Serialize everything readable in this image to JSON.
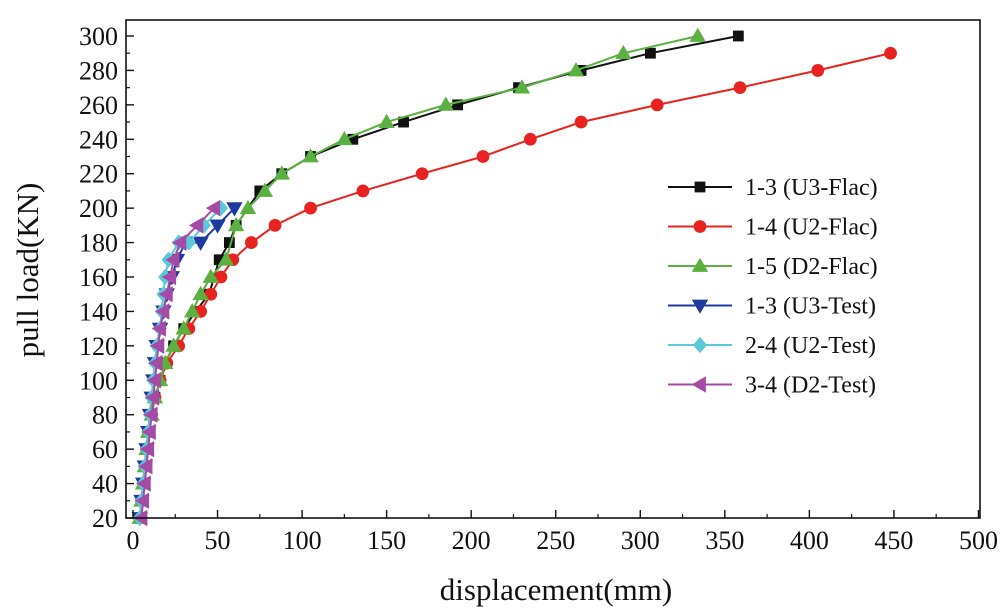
{
  "chart_data": {
    "type": "line",
    "xlabel": "displacement(mm)",
    "ylabel": "pull load(KN)",
    "xlim": [
      0,
      500
    ],
    "ylim": [
      20,
      310
    ],
    "xticks": [
      0,
      50,
      100,
      150,
      200,
      250,
      300,
      350,
      400,
      450,
      500
    ],
    "yticks": [
      20,
      40,
      60,
      80,
      100,
      120,
      140,
      160,
      180,
      200,
      220,
      240,
      260,
      280,
      300
    ],
    "grid": false,
    "legend_position": "right",
    "series": [
      {
        "name": "1-3 (U3-Flac)",
        "color": "#111111",
        "marker": "square",
        "x": [
          4,
          5,
          6,
          7,
          8,
          9,
          11,
          13,
          16,
          19,
          24,
          30,
          37,
          45,
          51,
          57,
          61,
          75,
          88,
          105,
          130,
          160,
          192,
          228,
          265,
          306,
          358
        ],
        "y": [
          20,
          30,
          40,
          50,
          60,
          70,
          80,
          90,
          100,
          110,
          120,
          130,
          140,
          150,
          170,
          180,
          190,
          210,
          220,
          230,
          240,
          250,
          260,
          270,
          280,
          290,
          300
        ]
      },
      {
        "name": "1-4 (U2-Flac)",
        "color": "#e8231f",
        "marker": "circle",
        "x": [
          4,
          5,
          6,
          7,
          8,
          9,
          11,
          13,
          16,
          20,
          27,
          33,
          40,
          46,
          52,
          59,
          70,
          84,
          105,
          136,
          171,
          207,
          235,
          265,
          310,
          359,
          405,
          448
        ],
        "y": [
          20,
          30,
          40,
          50,
          60,
          70,
          80,
          90,
          100,
          110,
          120,
          130,
          140,
          150,
          160,
          170,
          180,
          190,
          200,
          210,
          220,
          230,
          240,
          250,
          260,
          270,
          280,
          290
        ]
      },
      {
        "name": "1-5 (D2-Flac)",
        "color": "#5ab040",
        "marker": "triangle-up",
        "x": [
          4,
          5,
          6,
          7,
          8,
          9,
          11,
          13,
          16,
          19,
          24,
          30,
          35,
          40,
          46,
          55,
          61,
          68,
          78,
          88,
          105,
          125,
          150,
          185,
          230,
          262,
          290,
          334
        ],
        "y": [
          20,
          30,
          40,
          50,
          60,
          70,
          80,
          90,
          100,
          110,
          120,
          130,
          140,
          150,
          160,
          170,
          190,
          200,
          210,
          220,
          230,
          240,
          250,
          260,
          270,
          280,
          290,
          300
        ]
      },
      {
        "name": "1-3 (U3-Test)",
        "color": "#1f3a9e",
        "marker": "triangle-down",
        "x": [
          4,
          5,
          6,
          7,
          8,
          9,
          10,
          11,
          12,
          13,
          14,
          16,
          18,
          20,
          23,
          26,
          31,
          40,
          50,
          60
        ],
        "y": [
          20,
          30,
          40,
          50,
          60,
          70,
          80,
          90,
          100,
          110,
          120,
          130,
          140,
          150,
          160,
          170,
          180,
          180,
          190,
          200
        ]
      },
      {
        "name": "2-4 (U2-Test)",
        "color": "#5bc8d9",
        "marker": "diamond",
        "x": [
          4,
          5,
          6,
          7,
          8,
          9,
          10,
          11,
          12,
          13,
          14,
          16,
          17,
          18,
          19,
          21,
          27,
          33,
          42,
          52
        ],
        "y": [
          20,
          30,
          40,
          50,
          60,
          70,
          80,
          90,
          100,
          110,
          120,
          130,
          140,
          150,
          160,
          170,
          180,
          180,
          190,
          200
        ]
      },
      {
        "name": "3-4 (D2-Test)",
        "color": "#a64aa8",
        "marker": "triangle-left",
        "x": [
          5,
          6,
          7,
          8,
          9,
          10,
          11,
          12,
          13,
          14,
          15,
          16,
          18,
          20,
          22,
          24,
          28,
          38,
          48
        ],
        "y": [
          20,
          30,
          40,
          50,
          60,
          70,
          80,
          90,
          100,
          110,
          120,
          130,
          140,
          150,
          160,
          170,
          180,
          190,
          200
        ]
      }
    ]
  }
}
